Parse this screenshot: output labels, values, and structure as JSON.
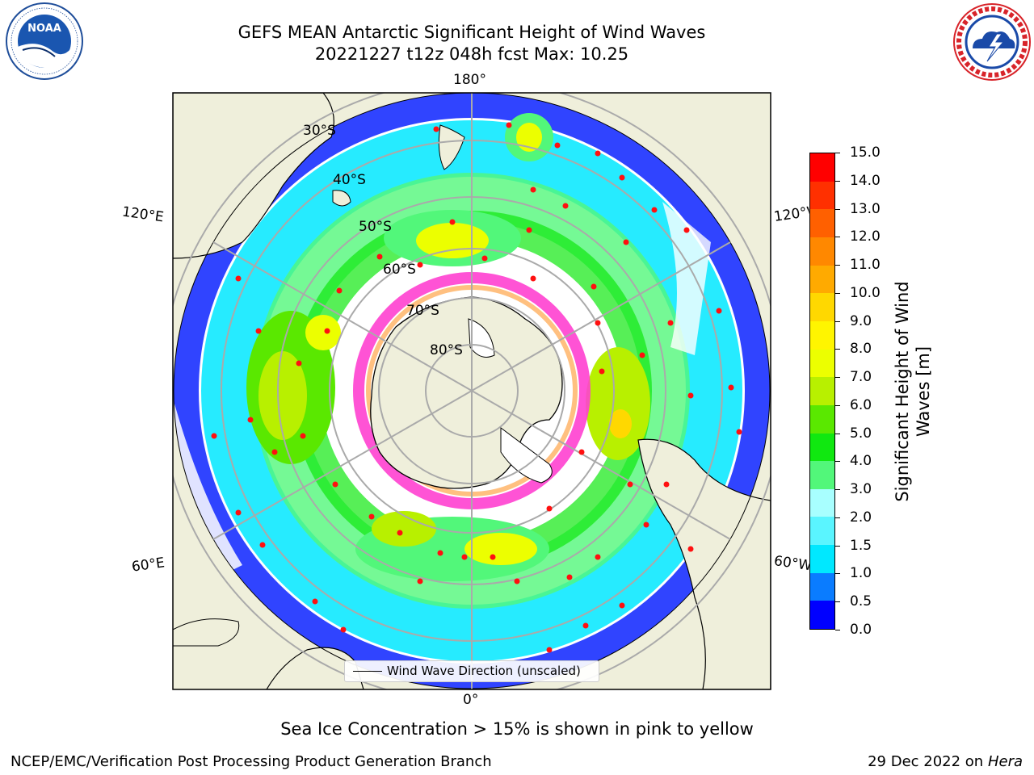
{
  "header": {
    "title_line1": "GEFS MEAN Antarctic Significant Height of Wind Waves",
    "title_line2": "20221227 t12z 048h fcst   Max: 10.25"
  },
  "logos": {
    "left": {
      "icon": "noaa-logo-icon",
      "text": "NOAA",
      "ring_text": "NATIONAL OCEANIC AND ATMOSPHERIC ADMINISTRATION · U.S. DEPARTMENT OF COMMERCE"
    },
    "right": {
      "icon": "national-weather-service-logo-icon",
      "ring_text": "NATIONAL WEATHER SERVICE"
    }
  },
  "map": {
    "projection": "south-polar-stereographic",
    "longitude_labels": {
      "top": "180°",
      "upper_left": "120°E",
      "upper_right": "120°W",
      "lower_left": "60°E",
      "lower_right": "60°W",
      "bottom": "0°"
    },
    "latitude_labels": [
      "30°S",
      "40°S",
      "50°S",
      "60°S",
      "70°S",
      "80°S"
    ],
    "legend": {
      "line_label": "Wind Wave Direction (unscaled)"
    }
  },
  "colorbar": {
    "title_line1": "Significant Height of Wind",
    "title_line2": "Waves [m]",
    "tick_labels": [
      "0.0",
      "0.5",
      "1.0",
      "1.5",
      "2.0",
      "3.0",
      "4.0",
      "5.0",
      "6.0",
      "7.0",
      "8.0",
      "9.0",
      "10.0",
      "11.0",
      "12.0",
      "13.0",
      "14.0",
      "15.0"
    ],
    "colors": [
      "#0000ff",
      "#0a7cff",
      "#00e8ff",
      "#5af5ff",
      "#a8ffff",
      "#52f77a",
      "#10e810",
      "#5ae800",
      "#b8f000",
      "#ecff00",
      "#fff500",
      "#ffd800",
      "#ffaa00",
      "#ff8800",
      "#ff6000",
      "#ff3000",
      "#ff0000"
    ]
  },
  "chart_data": {
    "type": "heatmap",
    "title": "GEFS MEAN Antarctic Significant Height of Wind Waves",
    "subtitle": "20221227 t12z 048h fcst   Max: 10.25",
    "max_value": 10.25,
    "colorbar_label": "Significant Height of Wind Waves [m]",
    "levels": [
      0.0,
      0.5,
      1.0,
      1.5,
      2.0,
      3.0,
      4.0,
      5.0,
      6.0,
      7.0,
      8.0,
      9.0,
      10.0,
      11.0,
      12.0,
      13.0,
      14.0,
      15.0
    ],
    "overlay": "Wind Wave Direction (unscaled)",
    "note": "Sea Ice Concentration > 15% is shown in pink to yellow"
  },
  "footer": {
    "subtitle": "Sea Ice Concentration > 15% is shown in pink to yellow",
    "credit": "NCEP/EMC/Verification Post Processing Product Generation Branch",
    "date": "29 Dec 2022 on",
    "machine": "Hera"
  }
}
